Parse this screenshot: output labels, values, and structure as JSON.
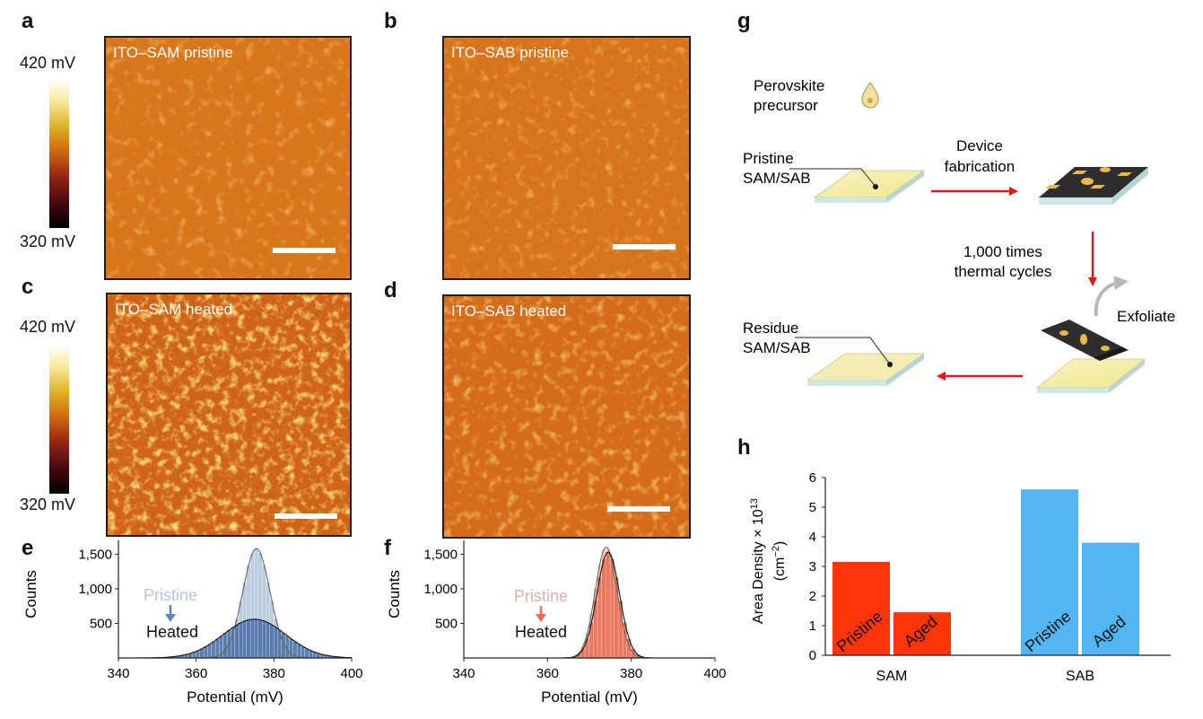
{
  "panel_labels": {
    "a": "a",
    "b": "b",
    "c": "c",
    "d": "d",
    "e": "e",
    "f": "f",
    "g": "g",
    "h": "h"
  },
  "colorbar": {
    "max": "420 mV",
    "min": "320 mV"
  },
  "maps": {
    "a": {
      "title": "ITO–SAM pristine",
      "roughness": "low"
    },
    "b": {
      "title": "ITO–SAB pristine",
      "roughness": "low"
    },
    "c": {
      "title": "ITO–SAM heated",
      "roughness": "high"
    },
    "d": {
      "title": "ITO–SAB heated",
      "roughness": "medium"
    }
  },
  "schematic": {
    "precursor": [
      "Perovskite",
      "precursor"
    ],
    "pristine": [
      "Pristine",
      "SAM/SAB"
    ],
    "device": [
      "Device",
      "fabrication"
    ],
    "cycles": [
      "1,000 times",
      "thermal cycles"
    ],
    "exfoliate": "Exfoliate",
    "residue": [
      "Residue",
      "SAM/SAB"
    ],
    "colors": {
      "arrow": "#e8141b",
      "substrate": "#f6f0b0",
      "device": "#2a2a2a",
      "pads": "#e8b84a"
    }
  },
  "chart_data": [
    {
      "id": "e",
      "type": "bar",
      "xlabel": "Potential (mV)",
      "ylabel": "Counts",
      "xlim": [
        340,
        400
      ],
      "ylim": [
        0,
        1700
      ],
      "xticks": [
        340,
        360,
        380,
        400
      ],
      "yticks": [
        500,
        1000,
        1500
      ],
      "ytick_labels": [
        "500",
        "1,000",
        "1,500"
      ],
      "legend_pristine": "Pristine",
      "legend_heated": "Heated",
      "colors": {
        "pristine": "#b5c6dc",
        "heated": "#4e74a8",
        "arrow": "#5a86ba"
      },
      "pristine": {
        "mean": 375.5,
        "sigma": 3.5,
        "peak": 1580
      },
      "heated": {
        "mean": 375,
        "sigma": 8,
        "peak": 560
      }
    },
    {
      "id": "f",
      "type": "bar",
      "xlabel": "Potential (mV)",
      "ylabel": "Counts",
      "xlim": [
        340,
        400
      ],
      "ylim": [
        0,
        1700
      ],
      "xticks": [
        340,
        360,
        380,
        400
      ],
      "yticks": [
        500,
        1000,
        1500
      ],
      "ytick_labels": [
        "500",
        "1,000",
        "1,500"
      ],
      "legend_pristine": "Pristine",
      "legend_heated": "Heated",
      "colors": {
        "pristine": "#f6c2b4",
        "heated": "#ee7058",
        "arrow": "#f06a55"
      },
      "pristine": {
        "mean": 374,
        "sigma": 2.6,
        "peak": 1600
      },
      "heated": {
        "mean": 374.5,
        "sigma": 2.7,
        "peak": 1530
      }
    },
    {
      "id": "h",
      "type": "bar",
      "ylabel": "Area Density × 10",
      "ylabel_exp": "13",
      "ylabel_unit": "(cm",
      "ylabel_unit_exp": "−2",
      "ylabel_unit_close": ")",
      "ylim": [
        0,
        6
      ],
      "yticks": [
        0,
        1,
        2,
        3,
        4,
        5,
        6
      ],
      "categories": [
        "SAM",
        "SAB"
      ],
      "series": [
        {
          "name": "Pristine",
          "values": [
            3.15,
            5.6
          ]
        },
        {
          "name": "Aged",
          "values": [
            1.45,
            3.8
          ]
        }
      ],
      "colors": {
        "SAM": "#ff3408",
        "SAB": "#52b6f2"
      }
    }
  ]
}
